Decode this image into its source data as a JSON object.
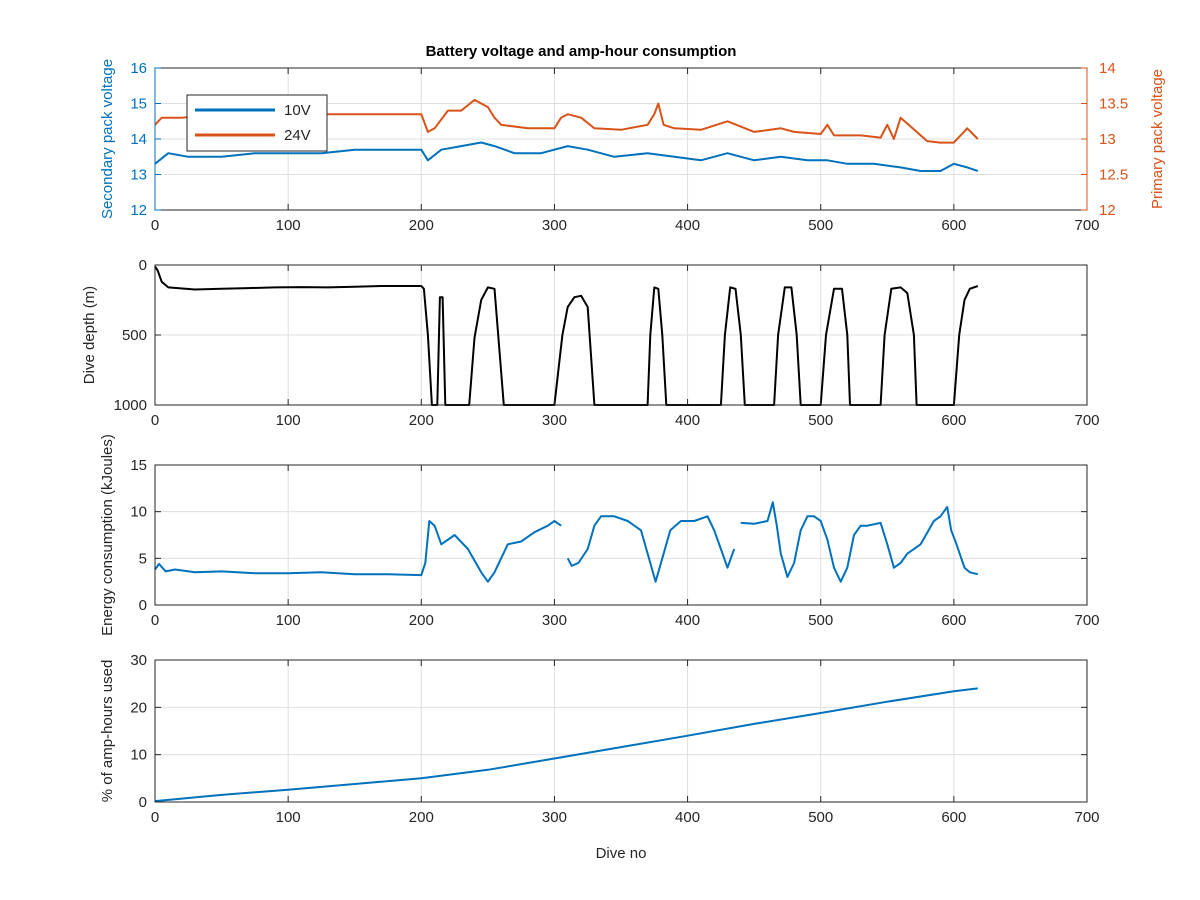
{
  "chart_data": [
    {
      "type": "line",
      "title": "Battery voltage and amp-hour consumption",
      "xlabel": "",
      "ylabel": "Secondary pack voltage",
      "ylabel_right": "Primary pack voltage",
      "xlim": [
        0,
        700
      ],
      "ylim": [
        12,
        16
      ],
      "ylim_right": [
        12,
        14
      ],
      "xticks": [
        "0",
        "100",
        "200",
        "300",
        "400",
        "500",
        "600",
        "700"
      ],
      "yticks": [
        "12",
        "13",
        "14",
        "15",
        "16"
      ],
      "yticks_right": [
        "12",
        "12.5",
        "13",
        "13.5",
        "14"
      ],
      "grid": true,
      "legend": "top-left",
      "colors": {
        "10V": "#0072bd",
        "24V": "#d95319",
        "axis_left": "#0072bd",
        "axis_right": "#d95319"
      },
      "series": [
        {
          "name": "10V",
          "axis": "left",
          "x": [
            0,
            10,
            25,
            50,
            75,
            100,
            125,
            150,
            175,
            200,
            205,
            215,
            230,
            245,
            255,
            270,
            290,
            310,
            325,
            345,
            370,
            390,
            410,
            430,
            450,
            470,
            490,
            505,
            520,
            540,
            560,
            575,
            590,
            600,
            610,
            618
          ],
          "y": [
            13.3,
            13.6,
            13.5,
            13.5,
            13.6,
            13.6,
            13.6,
            13.7,
            13.7,
            13.7,
            13.4,
            13.7,
            13.8,
            13.9,
            13.8,
            13.6,
            13.6,
            13.8,
            13.7,
            13.5,
            13.6,
            13.5,
            13.4,
            13.6,
            13.4,
            13.5,
            13.4,
            13.4,
            13.3,
            13.3,
            13.2,
            13.1,
            13.1,
            13.3,
            13.2,
            13.1
          ]
        },
        {
          "name": "24V",
          "axis": "right",
          "x": [
            0,
            5,
            20,
            50,
            100,
            150,
            200,
            205,
            210,
            220,
            230,
            240,
            250,
            255,
            260,
            280,
            300,
            305,
            310,
            320,
            330,
            350,
            370,
            375,
            378,
            382,
            390,
            410,
            430,
            450,
            470,
            480,
            500,
            505,
            510,
            530,
            545,
            550,
            555,
            560,
            580,
            590,
            600,
            610,
            618
          ],
          "y": [
            13.2,
            13.3,
            13.3,
            13.35,
            13.35,
            13.35,
            13.35,
            13.1,
            13.15,
            13.4,
            13.4,
            13.55,
            13.45,
            13.3,
            13.2,
            13.15,
            13.15,
            13.3,
            13.35,
            13.3,
            13.15,
            13.13,
            13.2,
            13.35,
            13.5,
            13.2,
            13.15,
            13.13,
            13.25,
            13.1,
            13.15,
            13.1,
            13.07,
            13.2,
            13.05,
            13.05,
            13.02,
            13.2,
            13.0,
            13.3,
            12.97,
            12.95,
            12.95,
            13.15,
            13.0
          ]
        }
      ]
    },
    {
      "type": "line",
      "title": "",
      "xlabel": "",
      "ylabel": "Dive depth (m)",
      "xlim": [
        0,
        700
      ],
      "ylim": [
        1000,
        0
      ],
      "y_reversed": true,
      "xticks": [
        "0",
        "100",
        "200",
        "300",
        "400",
        "500",
        "600",
        "700"
      ],
      "yticks": [
        "0",
        "500",
        "1000"
      ],
      "grid": true,
      "colors": {
        "line": "#000000"
      },
      "series": [
        {
          "name": "",
          "x": [
            0,
            2,
            5,
            10,
            30,
            50,
            70,
            90,
            110,
            130,
            150,
            170,
            200,
            202,
            205,
            208,
            212,
            214,
            216,
            218,
            236,
            240,
            245,
            250,
            255,
            262,
            300,
            306,
            310,
            315,
            320,
            325,
            330,
            333,
            370,
            372,
            375,
            378,
            381,
            384,
            425,
            428,
            432,
            436,
            440,
            443,
            465,
            468,
            473,
            478,
            482,
            485,
            500,
            504,
            510,
            516,
            520,
            522,
            545,
            548,
            553,
            560,
            565,
            570,
            572,
            600,
            604,
            608,
            612,
            618
          ],
          "y": [
            10,
            40,
            120,
            160,
            175,
            170,
            165,
            160,
            158,
            160,
            155,
            150,
            150,
            170,
            500,
            1000,
            1000,
            230,
            230,
            1000,
            1000,
            520,
            250,
            160,
            170,
            1000,
            1000,
            500,
            300,
            230,
            220,
            300,
            1000,
            1000,
            1000,
            500,
            160,
            170,
            500,
            1000,
            1000,
            500,
            160,
            170,
            500,
            1000,
            1000,
            500,
            160,
            160,
            500,
            1000,
            1000,
            500,
            170,
            170,
            500,
            1000,
            1000,
            500,
            170,
            160,
            200,
            500,
            1000,
            1000,
            500,
            250,
            170,
            150
          ]
        }
      ]
    },
    {
      "type": "line",
      "title": "",
      "xlabel": "",
      "ylabel": "Energy consumption (kJoules)",
      "xlim": [
        0,
        700
      ],
      "ylim": [
        0,
        15
      ],
      "xticks": [
        "0",
        "100",
        "200",
        "300",
        "400",
        "500",
        "600",
        "700"
      ],
      "yticks": [
        "0",
        "5",
        "10",
        "15"
      ],
      "grid": true,
      "colors": {
        "line": "#0072bd"
      },
      "series": [
        {
          "name": "",
          "x": [
            0,
            3,
            8,
            15,
            30,
            50,
            75,
            100,
            125,
            150,
            175,
            200,
            203,
            206,
            210,
            215,
            225,
            235,
            245,
            250,
            255,
            265,
            275,
            285,
            295,
            300,
            305
          ],
          "y": [
            3.8,
            4.4,
            3.6,
            3.8,
            3.5,
            3.6,
            3.4,
            3.4,
            3.5,
            3.3,
            3.3,
            3.2,
            4.5,
            9.0,
            8.5,
            6.5,
            7.5,
            6.0,
            3.5,
            2.5,
            3.5,
            6.5,
            6.8,
            7.8,
            8.5,
            9.0,
            8.5
          ]
        },
        {
          "name": "",
          "x": [
            310,
            313,
            318,
            325,
            330,
            335,
            345,
            355,
            365,
            372,
            376,
            381,
            387,
            395,
            405,
            415,
            420,
            425,
            430,
            435
          ],
          "y": [
            5.0,
            4.2,
            4.5,
            6.0,
            8.5,
            9.5,
            9.5,
            9.0,
            8.0,
            4.5,
            2.5,
            5.0,
            8.0,
            9.0,
            9.0,
            9.5,
            8.0,
            6.0,
            4.0,
            6.0
          ]
        },
        {
          "name": "",
          "x": [
            440,
            450,
            460,
            464,
            467,
            470,
            475,
            480,
            485,
            490,
            495,
            500,
            505,
            510,
            515,
            520,
            525,
            530,
            535,
            545,
            550,
            555,
            560,
            565,
            575,
            585,
            590,
            595,
            598,
            602,
            608,
            612,
            618
          ],
          "y": [
            8.8,
            8.7,
            9.0,
            11.0,
            8.5,
            5.5,
            3.0,
            4.5,
            8.0,
            9.5,
            9.5,
            9.0,
            7.0,
            4.0,
            2.5,
            4.0,
            7.5,
            8.5,
            8.5,
            8.8,
            6.5,
            4.0,
            4.5,
            5.5,
            6.5,
            9.0,
            9.5,
            10.5,
            8.0,
            6.5,
            4.0,
            3.5,
            3.3
          ]
        }
      ]
    },
    {
      "type": "line",
      "title": "",
      "xlabel": "Dive no",
      "ylabel": "% of amp-hours used",
      "xlim": [
        0,
        700
      ],
      "ylim": [
        0,
        30
      ],
      "xticks": [
        "0",
        "100",
        "200",
        "300",
        "400",
        "500",
        "600",
        "700"
      ],
      "yticks": [
        "0",
        "10",
        "20",
        "30"
      ],
      "grid": true,
      "colors": {
        "line": "#0072bd"
      },
      "series": [
        {
          "name": "",
          "x": [
            0,
            50,
            100,
            150,
            200,
            250,
            300,
            350,
            400,
            450,
            500,
            550,
            600,
            618
          ],
          "y": [
            0.2,
            1.5,
            2.6,
            3.8,
            5.0,
            6.8,
            9.2,
            11.6,
            14.0,
            16.5,
            18.8,
            21.2,
            23.4,
            24.0
          ]
        }
      ]
    }
  ]
}
